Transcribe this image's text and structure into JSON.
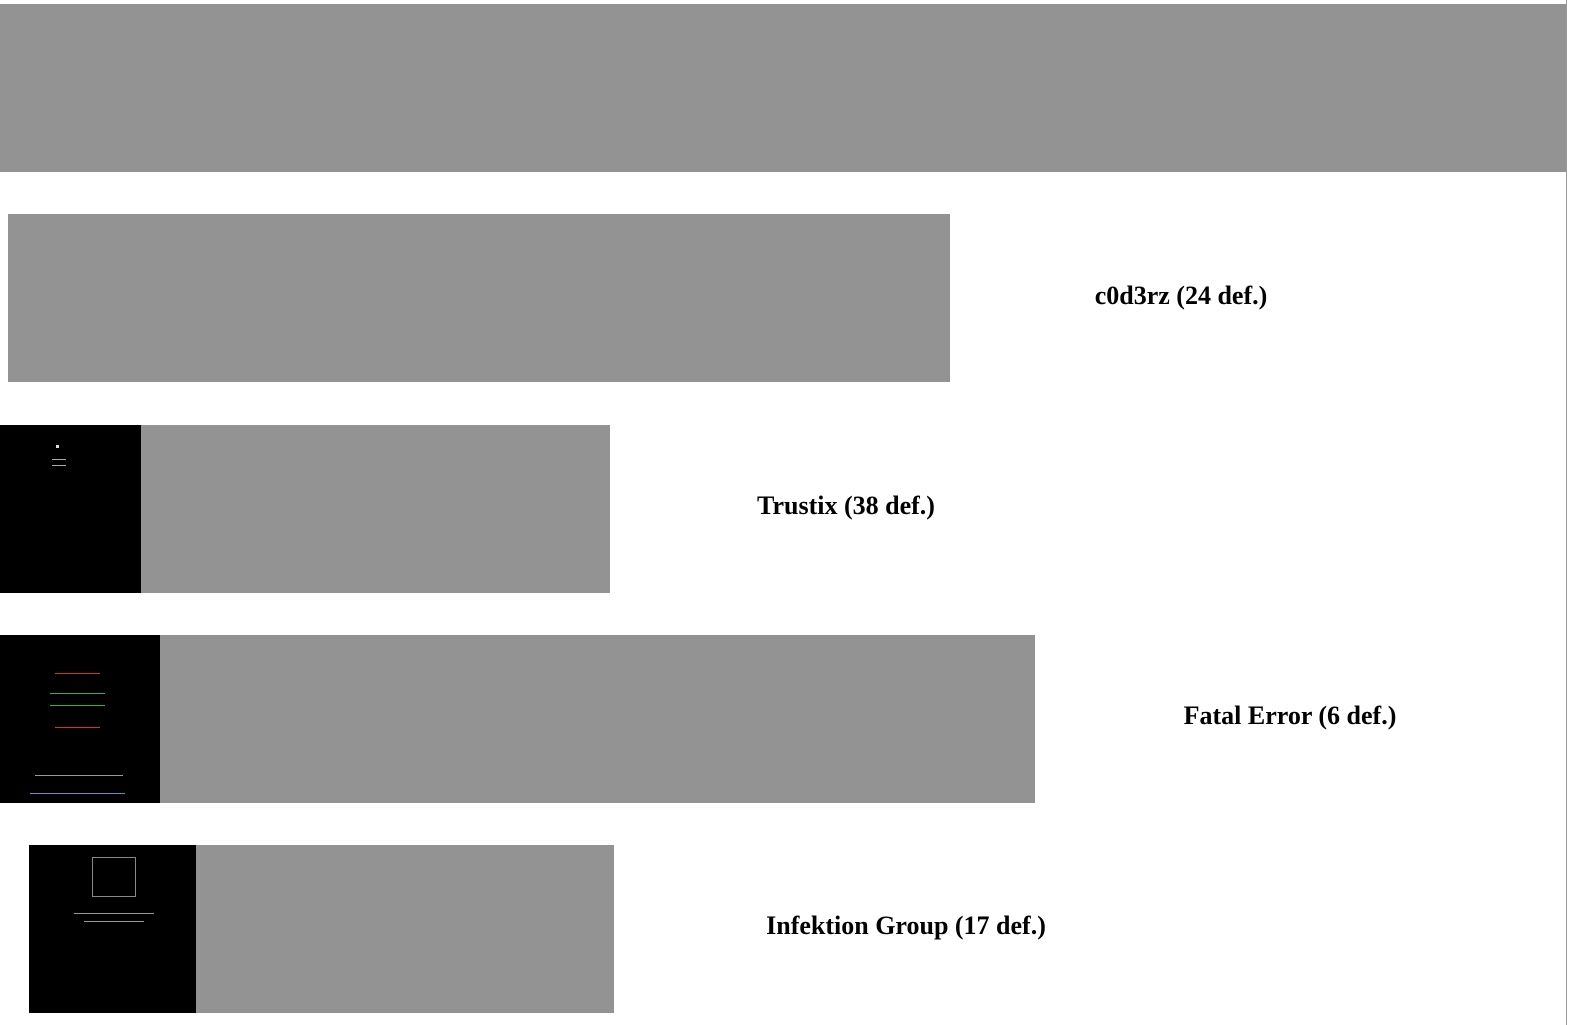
{
  "entries": [
    {
      "label": "c0d3rz (24 def.)"
    },
    {
      "label": "Trustix (38 def.)"
    },
    {
      "label": "Fatal Error (6 def.)"
    },
    {
      "label": "Infektion Group (17 def.)"
    }
  ]
}
